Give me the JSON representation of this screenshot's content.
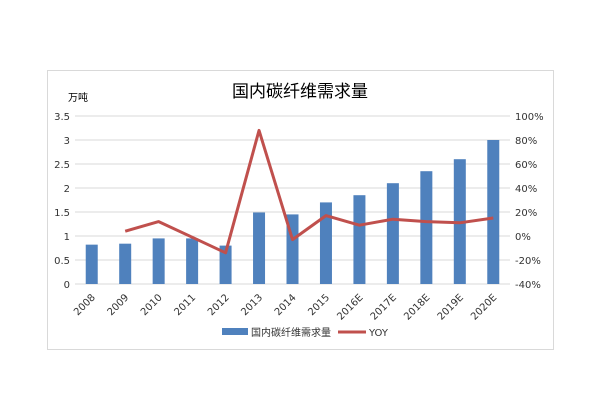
{
  "chart_data": {
    "type": "bar",
    "title": "国内碳纤维需求量",
    "ylabel": "万吨",
    "categories": [
      "2008",
      "2009",
      "2010",
      "2011",
      "2012",
      "2013",
      "2014",
      "2015",
      "2016E",
      "2017E",
      "2018E",
      "2019E",
      "2020E"
    ],
    "series": [
      {
        "name": "国内碳纤维需求量",
        "type": "bar",
        "axis": "left",
        "color": "#4f81bd",
        "values": [
          0.82,
          0.84,
          0.95,
          0.95,
          0.8,
          1.49,
          1.45,
          1.7,
          1.85,
          2.1,
          2.35,
          2.6,
          3.0
        ]
      },
      {
        "name": "YOY",
        "type": "line",
        "axis": "right",
        "color": "#c0504d",
        "values": [
          null,
          4,
          12,
          -1,
          -14,
          88,
          -3,
          17,
          9,
          14,
          12,
          11,
          15
        ]
      }
    ],
    "ylim": [
      0,
      3.5
    ],
    "yticks": [
      "0",
      "0.5",
      "1",
      "1.5",
      "2",
      "2.5",
      "3",
      "3.5"
    ],
    "y2lim": [
      -40,
      100
    ],
    "y2ticks": [
      "-40%",
      "-20%",
      "0%",
      "20%",
      "40%",
      "60%",
      "80%",
      "100%"
    ],
    "grid": true,
    "legend": "bottom"
  }
}
